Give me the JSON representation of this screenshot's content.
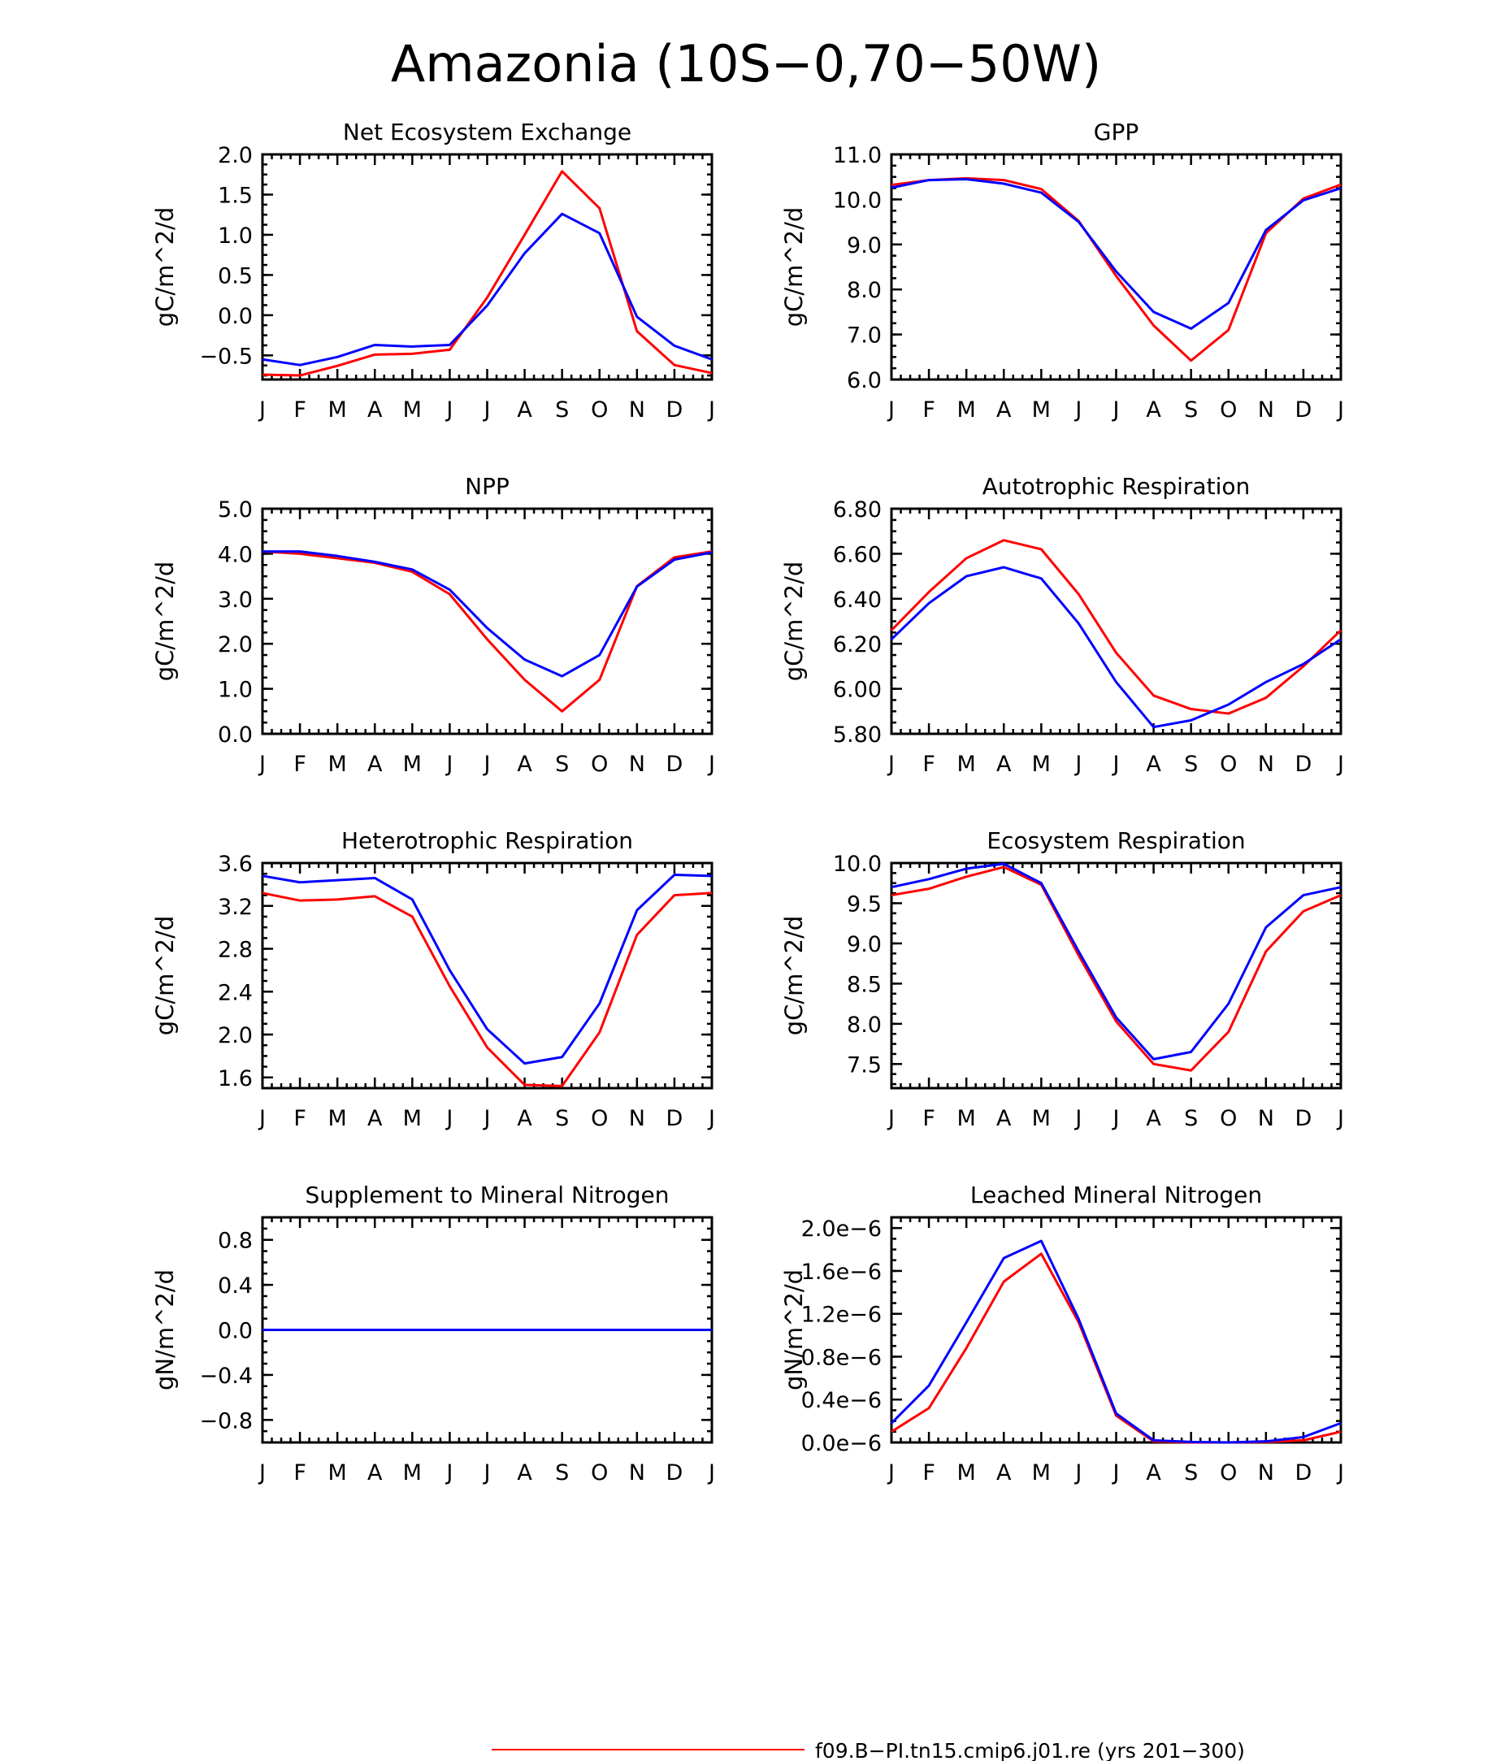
{
  "title": "Amazonia (10S−0,70−50W)",
  "colors": {
    "red": "#ff0000",
    "blue": "#0000ff"
  },
  "legend": [
    {
      "color": "red",
      "label": "f09.B−PI.tn15.cmip6.j01.re (yrs 201−300)"
    }
  ],
  "chart_data": [
    {
      "type": "line",
      "title": "Net Ecosystem Exchange",
      "ylabel": "gC/m^2/d",
      "categories": [
        "J",
        "F",
        "M",
        "A",
        "M",
        "J",
        "J",
        "A",
        "S",
        "O",
        "N",
        "D",
        "J"
      ],
      "ylim": [
        -0.8,
        2.0
      ],
      "yticks": [
        -0.5,
        0.0,
        0.5,
        1.0,
        1.5,
        2.0
      ],
      "ytick_labels": [
        "−0.5",
        "0.0",
        "0.5",
        "1.0",
        "1.5",
        "2.0"
      ],
      "series": [
        {
          "color": "red",
          "values": [
            -0.74,
            -0.75,
            -0.63,
            -0.49,
            -0.48,
            -0.43,
            0.22,
            1.0,
            1.79,
            1.33,
            -0.2,
            -0.62,
            -0.72
          ]
        },
        {
          "color": "blue",
          "values": [
            -0.55,
            -0.62,
            -0.52,
            -0.37,
            -0.39,
            -0.37,
            0.12,
            0.77,
            1.26,
            1.02,
            -0.02,
            -0.38,
            -0.55
          ]
        }
      ]
    },
    {
      "type": "line",
      "title": "GPP",
      "ylabel": "gC/m^2/d",
      "categories": [
        "J",
        "F",
        "M",
        "A",
        "M",
        "J",
        "J",
        "A",
        "S",
        "O",
        "N",
        "D",
        "J"
      ],
      "ylim": [
        6.0,
        11.0
      ],
      "yticks": [
        6.0,
        7.0,
        8.0,
        9.0,
        10.0,
        11.0
      ],
      "ytick_labels": [
        "6.0",
        "7.0",
        "8.0",
        "9.0",
        "10.0",
        "11.0"
      ],
      "series": [
        {
          "color": "red",
          "values": [
            10.32,
            10.43,
            10.47,
            10.43,
            10.23,
            9.52,
            8.3,
            7.2,
            6.42,
            7.1,
            9.25,
            10.02,
            10.33
          ]
        },
        {
          "color": "blue",
          "values": [
            10.26,
            10.43,
            10.45,
            10.35,
            10.15,
            9.5,
            8.4,
            7.5,
            7.13,
            7.7,
            9.32,
            9.98,
            10.25
          ]
        }
      ]
    },
    {
      "type": "line",
      "title": "NPP",
      "ylabel": "gC/m^2/d",
      "categories": [
        "J",
        "F",
        "M",
        "A",
        "M",
        "J",
        "J",
        "A",
        "S",
        "O",
        "N",
        "D",
        "J"
      ],
      "ylim": [
        0.0,
        5.0
      ],
      "yticks": [
        0.0,
        1.0,
        2.0,
        3.0,
        4.0,
        5.0
      ],
      "ytick_labels": [
        "0.0",
        "1.0",
        "2.0",
        "3.0",
        "4.0",
        "5.0"
      ],
      "series": [
        {
          "color": "red",
          "values": [
            4.05,
            4.0,
            3.9,
            3.8,
            3.6,
            3.1,
            2.1,
            1.2,
            0.5,
            1.2,
            3.28,
            3.92,
            4.05
          ]
        },
        {
          "color": "blue",
          "values": [
            4.05,
            4.05,
            3.95,
            3.82,
            3.65,
            3.2,
            2.35,
            1.65,
            1.28,
            1.75,
            3.27,
            3.87,
            4.03
          ]
        }
      ]
    },
    {
      "type": "line",
      "title": "Autotrophic Respiration",
      "ylabel": "gC/m^2/d",
      "categories": [
        "J",
        "F",
        "M",
        "A",
        "M",
        "J",
        "J",
        "A",
        "S",
        "O",
        "N",
        "D",
        "J"
      ],
      "ylim": [
        5.8,
        6.8
      ],
      "yticks": [
        5.8,
        6.0,
        6.2,
        6.4,
        6.6,
        6.8
      ],
      "ytick_labels": [
        "5.80",
        "6.00",
        "6.20",
        "6.40",
        "6.60",
        "6.80"
      ],
      "series": [
        {
          "color": "red",
          "values": [
            6.26,
            6.43,
            6.58,
            6.66,
            6.62,
            6.42,
            6.16,
            5.97,
            5.91,
            5.89,
            5.96,
            6.1,
            6.26
          ]
        },
        {
          "color": "blue",
          "values": [
            6.22,
            6.38,
            6.5,
            6.54,
            6.49,
            6.29,
            6.03,
            5.83,
            5.86,
            5.93,
            6.03,
            6.11,
            6.22
          ]
        }
      ]
    },
    {
      "type": "line",
      "title": "Heterotrophic Respiration",
      "ylabel": "gC/m^2/d",
      "categories": [
        "J",
        "F",
        "M",
        "A",
        "M",
        "J",
        "J",
        "A",
        "S",
        "O",
        "N",
        "D",
        "J"
      ],
      "ylim": [
        1.5,
        3.6
      ],
      "yticks": [
        1.6,
        2.0,
        2.4,
        2.8,
        3.2,
        3.6
      ],
      "ytick_labels": [
        "1.6",
        "2.0",
        "2.4",
        "2.8",
        "3.2",
        "3.6"
      ],
      "series": [
        {
          "color": "red",
          "values": [
            3.32,
            3.25,
            3.26,
            3.29,
            3.1,
            2.45,
            1.88,
            1.53,
            1.52,
            2.02,
            2.93,
            3.3,
            3.32
          ]
        },
        {
          "color": "blue",
          "values": [
            3.48,
            3.42,
            3.44,
            3.46,
            3.26,
            2.6,
            2.05,
            1.73,
            1.79,
            2.29,
            3.16,
            3.49,
            3.48
          ]
        }
      ]
    },
    {
      "type": "line",
      "title": "Ecosystem Respiration",
      "ylabel": "gC/m^2/d",
      "categories": [
        "J",
        "F",
        "M",
        "A",
        "M",
        "J",
        "J",
        "A",
        "S",
        "O",
        "N",
        "D",
        "J"
      ],
      "ylim": [
        7.2,
        10.0
      ],
      "yticks": [
        7.5,
        8.0,
        8.5,
        9.0,
        9.5,
        10.0
      ],
      "ytick_labels": [
        "7.5",
        "8.0",
        "8.5",
        "9.0",
        "9.5",
        "10.0"
      ],
      "series": [
        {
          "color": "red",
          "values": [
            9.6,
            9.68,
            9.83,
            9.95,
            9.73,
            8.85,
            8.03,
            7.5,
            7.42,
            7.9,
            8.9,
            9.4,
            9.6
          ]
        },
        {
          "color": "blue",
          "values": [
            9.7,
            9.8,
            9.93,
            9.99,
            9.75,
            8.9,
            8.08,
            7.56,
            7.65,
            8.25,
            9.2,
            9.6,
            9.7
          ]
        }
      ]
    },
    {
      "type": "line",
      "title": "Supplement to Mineral Nitrogen",
      "ylabel": "gN/m^2/d",
      "categories": [
        "J",
        "F",
        "M",
        "A",
        "M",
        "J",
        "J",
        "A",
        "S",
        "O",
        "N",
        "D",
        "J"
      ],
      "ylim": [
        -1.0,
        1.0
      ],
      "yticks": [
        -0.8,
        -0.4,
        0.0,
        0.4,
        0.8
      ],
      "ytick_labels": [
        "−0.8",
        "−0.4",
        "0.0",
        "0.4",
        "0.8"
      ],
      "series": [
        {
          "color": "red",
          "values": [
            0,
            0,
            0,
            0,
            0,
            0,
            0,
            0,
            0,
            0,
            0,
            0,
            0
          ]
        },
        {
          "color": "blue",
          "values": [
            0,
            0,
            0,
            0,
            0,
            0,
            0,
            0,
            0,
            0,
            0,
            0,
            0
          ]
        }
      ]
    },
    {
      "type": "line",
      "title": "Leached Mineral Nitrogen",
      "ylabel": "gN/m^2/d",
      "categories": [
        "J",
        "F",
        "M",
        "A",
        "M",
        "J",
        "J",
        "A",
        "S",
        "O",
        "N",
        "D",
        "J"
      ],
      "ylim": [
        0.0,
        2.1e-06
      ],
      "yticks": [
        0.0,
        4e-07,
        8e-07,
        1.2e-06,
        1.6e-06,
        2e-06
      ],
      "ytick_labels": [
        "0.0e−6",
        "0.4e−6",
        "0.8e−6",
        "1.2e−6",
        "1.6e−6",
        "2.0e−6"
      ],
      "series": [
        {
          "color": "red",
          "values": [
            1e-07,
            3.2e-07,
            8.8e-07,
            1.5e-06,
            1.76e-06,
            1.12e-06,
            2.5e-07,
            1e-08,
            0.0,
            0.0,
            5e-09,
            2e-08,
            1e-07
          ]
        },
        {
          "color": "blue",
          "values": [
            1.8e-07,
            5.3e-07,
            1.12e-06,
            1.72e-06,
            1.88e-06,
            1.15e-06,
            2.7e-07,
            2e-08,
            5e-09,
            0.0,
            1e-08,
            5e-08,
            1.8e-07
          ]
        }
      ]
    }
  ]
}
